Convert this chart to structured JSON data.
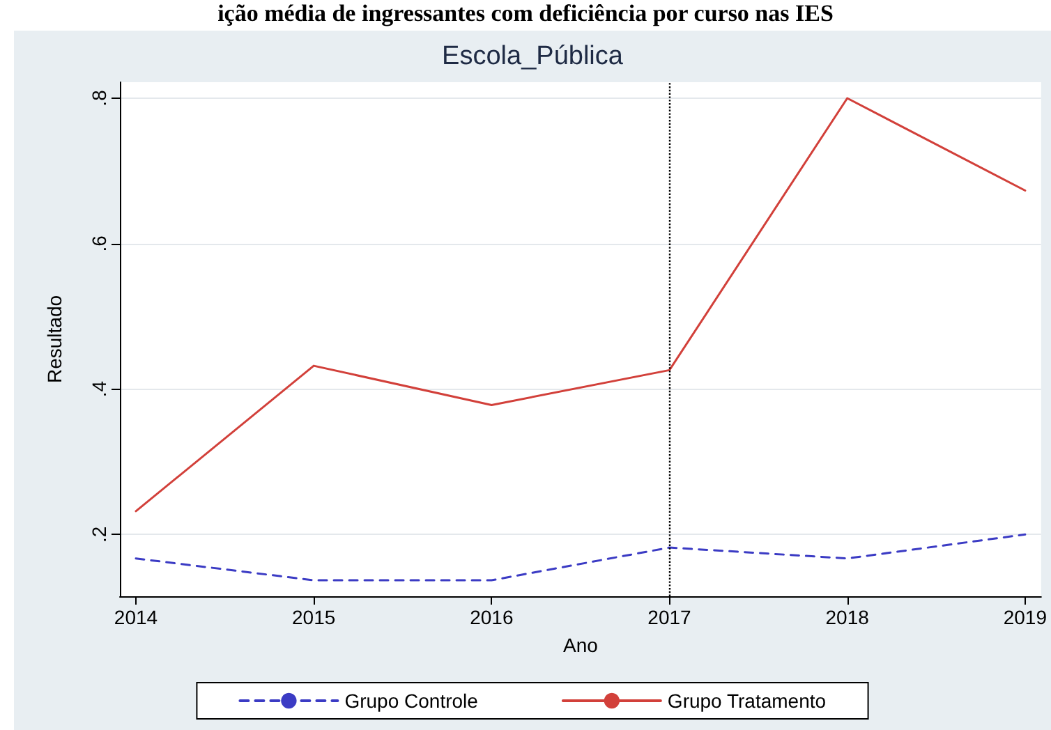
{
  "chart_data": {
    "type": "line",
    "title": "Escola_Pública",
    "annotations": [
      "ição média de ingressantes com deficiência por curso nas IES"
    ],
    "xlabel": "Ano",
    "ylabel": "Resultado",
    "x": [
      2014,
      2015,
      2016,
      2017,
      2018,
      2019
    ],
    "series": [
      {
        "name": "Grupo Controle",
        "color": "#3b3bc4",
        "line_style": "dashed",
        "values": [
          0.167,
          0.137,
          0.137,
          0.182,
          0.167,
          0.2
        ]
      },
      {
        "name": "Grupo Tratamento",
        "color": "#d2403a",
        "line_style": "solid",
        "values": [
          0.232,
          0.432,
          0.378,
          0.426,
          0.8,
          0.673
        ]
      }
    ],
    "xlim": [
      2013.91,
      2019.09
    ],
    "xticks": [
      2014,
      2015,
      2016,
      2017,
      2018,
      2019
    ],
    "ylim": [
      0.115,
      0.822
    ],
    "yticks": [
      {
        "value": 0.2,
        "label": ".2"
      },
      {
        "value": 0.4,
        "label": ".4"
      },
      {
        "value": 0.6,
        "label": ".6"
      },
      {
        "value": 0.8,
        "label": ".8"
      }
    ],
    "ref_lines": [
      {
        "axis": "x",
        "value": 2017,
        "color": "#000000",
        "line_style": "dotted"
      }
    ],
    "grid": "y",
    "legend": "bottom",
    "marker": "none"
  }
}
